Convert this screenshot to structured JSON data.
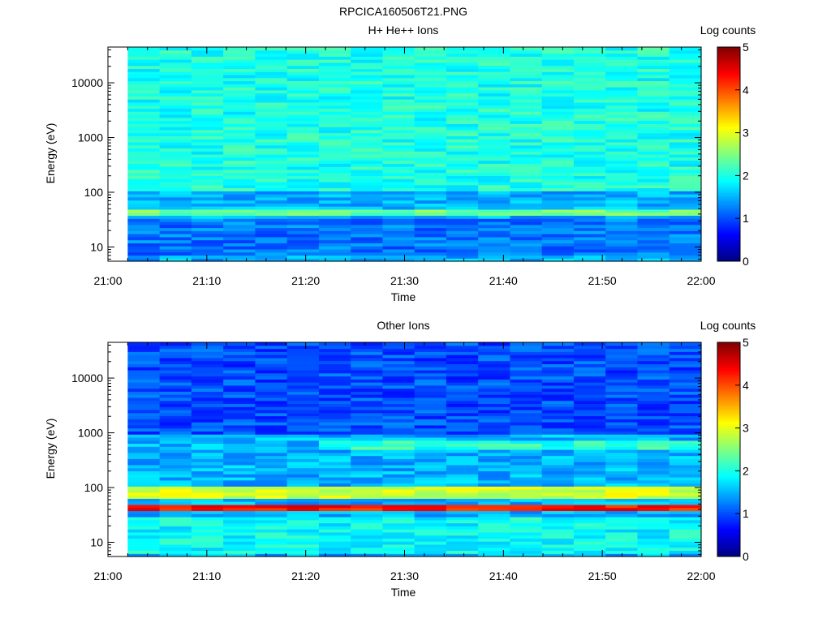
{
  "figure": {
    "title": "RPCICA160506T21.PNG"
  },
  "chart_data": [
    {
      "type": "heatmap",
      "title": "H+ He++ Ions",
      "xlabel": "Time",
      "ylabel": "Energy (eV)",
      "x_ticks": [
        "21:00",
        "21:10",
        "21:20",
        "21:30",
        "21:40",
        "21:50",
        "22:00"
      ],
      "x_range": [
        "21:00",
        "22:00"
      ],
      "time_start": "21:02",
      "time_end": "22:00",
      "time_columns": 18,
      "y_ticks": [
        10,
        100,
        1000,
        10000
      ],
      "y_tick_labels": [
        "10",
        "100",
        "1000",
        "10000"
      ],
      "y_range": [
        5.5,
        45000
      ],
      "y_scale": "log",
      "colorbar": {
        "label": "Log counts",
        "ticks": [
          "0",
          "1",
          "2",
          "3",
          "4",
          "5"
        ],
        "range": [
          0,
          5
        ],
        "colormap": "jet"
      },
      "features": [
        {
          "energy_eV": [
            7,
            35
          ],
          "log_counts": 1.2,
          "time": "all"
        },
        {
          "energy_eV": [
            40,
            50
          ],
          "log_counts": 2.4,
          "time": "all"
        },
        {
          "energy_eV": [
            1200,
            1600
          ],
          "log_counts": 2.5,
          "time": "21:02-21:50"
        },
        {
          "energy_eV": [
            500,
            750
          ],
          "log_counts": 3.0,
          "time": "21:22-22:00"
        },
        {
          "energy_eV": [
            550,
            700
          ],
          "log_counts": 3.4,
          "time": "21:44-21:47"
        },
        {
          "energy_eV": [
            100,
            45000
          ],
          "log_counts": 2.0,
          "time": "all"
        }
      ]
    },
    {
      "type": "heatmap",
      "title": "Other Ions",
      "xlabel": "Time",
      "ylabel": "Energy (eV)",
      "x_ticks": [
        "21:00",
        "21:10",
        "21:20",
        "21:30",
        "21:40",
        "21:50",
        "22:00"
      ],
      "x_range": [
        "21:00",
        "22:00"
      ],
      "time_start": "21:02",
      "time_end": "22:00",
      "time_columns": 18,
      "y_ticks": [
        10,
        100,
        1000,
        10000
      ],
      "y_tick_labels": [
        "10",
        "100",
        "1000",
        "10000"
      ],
      "y_range": [
        5.5,
        45000
      ],
      "y_scale": "log",
      "colorbar": {
        "label": "Log counts",
        "ticks": [
          "0",
          "1",
          "2",
          "3",
          "4",
          "5"
        ],
        "range": [
          0,
          5
        ],
        "colormap": "jet"
      },
      "features": [
        {
          "energy_eV": [
            6,
            30
          ],
          "log_counts": 1.9,
          "time": "all"
        },
        {
          "energy_eV": [
            38,
            52
          ],
          "log_counts": 4.3,
          "time": "all"
        },
        {
          "energy_eV": [
            60,
            110
          ],
          "log_counts": 2.9,
          "time": "all"
        },
        {
          "energy_eV": [
            500,
            700
          ],
          "log_counts": 2.1,
          "time": "21:22-22:00"
        },
        {
          "energy_eV": [
            1000,
            45000
          ],
          "log_counts": 1.0,
          "time": "all"
        }
      ]
    }
  ]
}
